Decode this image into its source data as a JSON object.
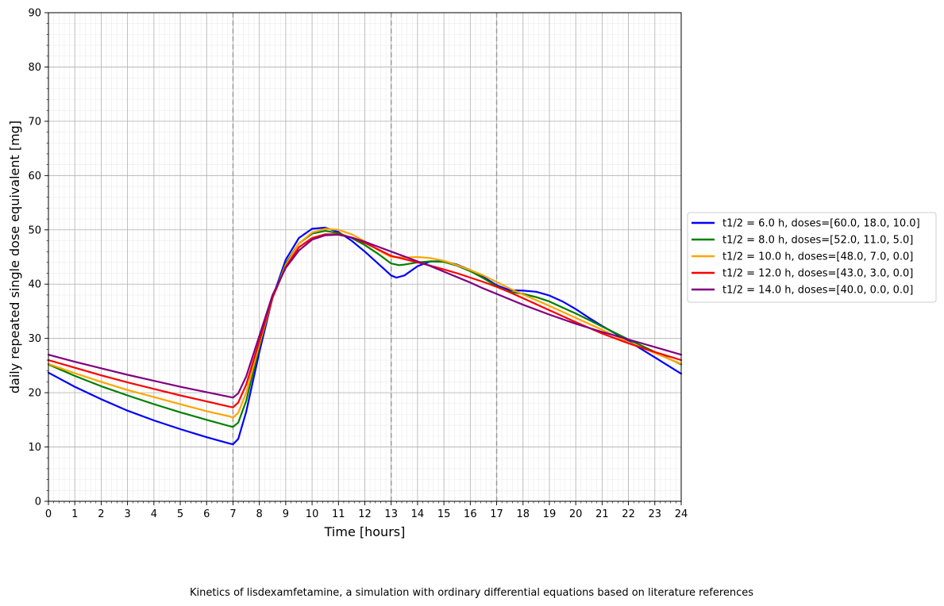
{
  "chart_data": {
    "type": "line",
    "title": "",
    "xlabel": "Time [hours]",
    "ylabel": "daily repeated single dose equivalent [mg]",
    "caption": "Kinetics of lisdexamfetamine, a simulation with ordinary differential equations based on literature references",
    "xlim": [
      0,
      24
    ],
    "ylim": [
      0,
      90
    ],
    "xticks": [
      0,
      1,
      2,
      3,
      4,
      5,
      6,
      7,
      8,
      9,
      10,
      11,
      12,
      13,
      14,
      15,
      16,
      17,
      18,
      19,
      20,
      21,
      22,
      23,
      24
    ],
    "yticks": [
      0,
      10,
      20,
      30,
      40,
      50,
      60,
      70,
      80,
      90
    ],
    "grid": true,
    "minor_grid": true,
    "legend_position": "right, outside",
    "vertical_dashed_lines": [
      7,
      13,
      17
    ],
    "series": [
      {
        "name": "t1/2 = 6.0 h, doses=[60.0, 18.0, 10.0]",
        "color": "#0000ff",
        "points": [
          [
            0,
            23.7
          ],
          [
            1,
            21.1
          ],
          [
            2,
            18.8
          ],
          [
            3,
            16.7
          ],
          [
            4,
            14.9
          ],
          [
            5,
            13.3
          ],
          [
            6,
            11.8
          ],
          [
            6.9,
            10.6
          ],
          [
            7,
            10.5
          ],
          [
            7.2,
            11.5
          ],
          [
            7.5,
            16.5
          ],
          [
            8,
            27.5
          ],
          [
            8.5,
            37.5
          ],
          [
            9,
            44.5
          ],
          [
            9.5,
            48.5
          ],
          [
            10,
            50.2
          ],
          [
            10.5,
            50.4
          ],
          [
            11,
            49.6
          ],
          [
            11.5,
            48.0
          ],
          [
            12,
            46.0
          ],
          [
            12.5,
            43.8
          ],
          [
            13,
            41.6
          ],
          [
            13.2,
            41.2
          ],
          [
            13.5,
            41.6
          ],
          [
            14,
            43.3
          ],
          [
            14.5,
            44.2
          ],
          [
            15,
            44.2
          ],
          [
            15.5,
            43.6
          ],
          [
            16,
            42.6
          ],
          [
            16.5,
            41.3
          ],
          [
            17,
            39.8
          ],
          [
            17.5,
            38.9
          ],
          [
            18,
            38.8
          ],
          [
            18.5,
            38.6
          ],
          [
            19,
            37.9
          ],
          [
            19.5,
            36.8
          ],
          [
            20,
            35.4
          ],
          [
            20.5,
            33.8
          ],
          [
            21,
            32.3
          ],
          [
            21.5,
            30.9
          ],
          [
            22,
            29.5
          ],
          [
            23,
            26.5
          ],
          [
            24,
            23.5
          ]
        ]
      },
      {
        "name": "t1/2 = 8.0 h, doses=[52.0, 11.0, 5.0]",
        "color": "#008000",
        "points": [
          [
            0,
            25.2
          ],
          [
            1,
            23.1
          ],
          [
            2,
            21.2
          ],
          [
            3,
            19.5
          ],
          [
            4,
            17.9
          ],
          [
            5,
            16.4
          ],
          [
            6,
            15.0
          ],
          [
            6.9,
            13.8
          ],
          [
            7,
            13.7
          ],
          [
            7.2,
            14.5
          ],
          [
            7.5,
            18.5
          ],
          [
            8,
            28.5
          ],
          [
            8.5,
            37.5
          ],
          [
            9,
            43.8
          ],
          [
            9.5,
            47.5
          ],
          [
            10,
            49.3
          ],
          [
            10.5,
            49.8
          ],
          [
            11,
            49.4
          ],
          [
            11.5,
            48.5
          ],
          [
            12,
            47.2
          ],
          [
            12.5,
            45.6
          ],
          [
            13,
            43.8
          ],
          [
            13.3,
            43.5
          ],
          [
            13.5,
            43.6
          ],
          [
            14,
            44.0
          ],
          [
            14.5,
            44.2
          ],
          [
            15,
            44.1
          ],
          [
            15.5,
            43.4
          ],
          [
            16,
            42.4
          ],
          [
            16.5,
            41.1
          ],
          [
            17,
            39.6
          ],
          [
            17.5,
            38.6
          ],
          [
            18,
            38.2
          ],
          [
            18.5,
            37.6
          ],
          [
            19,
            36.8
          ],
          [
            19.5,
            35.7
          ],
          [
            20,
            34.6
          ],
          [
            20.5,
            33.4
          ],
          [
            21,
            32.2
          ],
          [
            22,
            29.8
          ],
          [
            23,
            27.5
          ],
          [
            24,
            25.2
          ]
        ]
      },
      {
        "name": "t1/2 = 10.0 h, doses=[48.0, 7.0, 0.0]",
        "color": "#ffa500",
        "points": [
          [
            0,
            25.3
          ],
          [
            1,
            23.6
          ],
          [
            2,
            22.0
          ],
          [
            3,
            20.5
          ],
          [
            4,
            19.2
          ],
          [
            5,
            17.9
          ],
          [
            6,
            16.6
          ],
          [
            6.9,
            15.6
          ],
          [
            7,
            15.4
          ],
          [
            7.2,
            16.3
          ],
          [
            7.5,
            20.0
          ],
          [
            8,
            29.0
          ],
          [
            8.5,
            37.5
          ],
          [
            9,
            43.5
          ],
          [
            9.5,
            47.5
          ],
          [
            10,
            49.5
          ],
          [
            10.5,
            50.2
          ],
          [
            11,
            50.0
          ],
          [
            11.5,
            49.2
          ],
          [
            12,
            47.9
          ],
          [
            12.5,
            46.3
          ],
          [
            13,
            45.0
          ],
          [
            13.5,
            44.9
          ],
          [
            14,
            45.0
          ],
          [
            14.5,
            44.8
          ],
          [
            15,
            44.3
          ],
          [
            15.5,
            43.5
          ],
          [
            16,
            42.6
          ],
          [
            16.5,
            41.6
          ],
          [
            17,
            40.4
          ],
          [
            17.5,
            39.2
          ],
          [
            18,
            38.1
          ],
          [
            19,
            36.0
          ],
          [
            20,
            33.8
          ],
          [
            21,
            31.6
          ],
          [
            22,
            29.3
          ],
          [
            23,
            27.3
          ],
          [
            24,
            25.3
          ]
        ]
      },
      {
        "name": "t1/2 = 12.0 h, doses=[43.0, 3.0, 0.0]",
        "color": "#ff0000",
        "points": [
          [
            0,
            26.0
          ],
          [
            1,
            24.6
          ],
          [
            2,
            23.2
          ],
          [
            3,
            21.9
          ],
          [
            4,
            20.7
          ],
          [
            5,
            19.5
          ],
          [
            6,
            18.4
          ],
          [
            6.9,
            17.4
          ],
          [
            7,
            17.3
          ],
          [
            7.2,
            18.2
          ],
          [
            7.5,
            21.5
          ],
          [
            8,
            29.5
          ],
          [
            8.5,
            37.5
          ],
          [
            9,
            43.2
          ],
          [
            9.5,
            46.8
          ],
          [
            10,
            48.5
          ],
          [
            10.5,
            49.2
          ],
          [
            11,
            49.2
          ],
          [
            11.5,
            48.6
          ],
          [
            12,
            47.6
          ],
          [
            12.5,
            46.4
          ],
          [
            13,
            45.2
          ],
          [
            13.5,
            44.6
          ],
          [
            14,
            44.0
          ],
          [
            14.5,
            43.4
          ],
          [
            15,
            42.7
          ],
          [
            15.5,
            42.0
          ],
          [
            16,
            41.2
          ],
          [
            16.5,
            40.4
          ],
          [
            17,
            39.5
          ],
          [
            17.5,
            38.5
          ],
          [
            18,
            37.4
          ],
          [
            19,
            35.2
          ],
          [
            20,
            33.0
          ],
          [
            21,
            30.9
          ],
          [
            22,
            29.1
          ],
          [
            23,
            27.5
          ],
          [
            24,
            26.0
          ]
        ]
      },
      {
        "name": "t1/2 = 14.0 h, doses=[40.0, 0.0, 0.0]",
        "color": "#800080",
        "points": [
          [
            0,
            27.0
          ],
          [
            1,
            25.7
          ],
          [
            2,
            24.5
          ],
          [
            3,
            23.3
          ],
          [
            4,
            22.2
          ],
          [
            5,
            21.1
          ],
          [
            6,
            20.1
          ],
          [
            6.9,
            19.2
          ],
          [
            7,
            19.1
          ],
          [
            7.2,
            19.9
          ],
          [
            7.5,
            23.0
          ],
          [
            8,
            30.5
          ],
          [
            8.5,
            38.0
          ],
          [
            9,
            43.0
          ],
          [
            9.5,
            46.2
          ],
          [
            10,
            48.2
          ],
          [
            10.5,
            49.0
          ],
          [
            11,
            49.1
          ],
          [
            11.5,
            48.6
          ],
          [
            12,
            47.8
          ],
          [
            12.5,
            46.9
          ],
          [
            13,
            46.0
          ],
          [
            13.5,
            45.1
          ],
          [
            14,
            44.2
          ],
          [
            14.5,
            43.3
          ],
          [
            15,
            42.3
          ],
          [
            15.5,
            41.3
          ],
          [
            16,
            40.3
          ],
          [
            16.5,
            39.2
          ],
          [
            17,
            38.2
          ],
          [
            18,
            36.2
          ],
          [
            19,
            34.4
          ],
          [
            20,
            32.7
          ],
          [
            21,
            31.2
          ],
          [
            22,
            29.8
          ],
          [
            23,
            28.4
          ],
          [
            24,
            27.0
          ]
        ]
      }
    ]
  }
}
